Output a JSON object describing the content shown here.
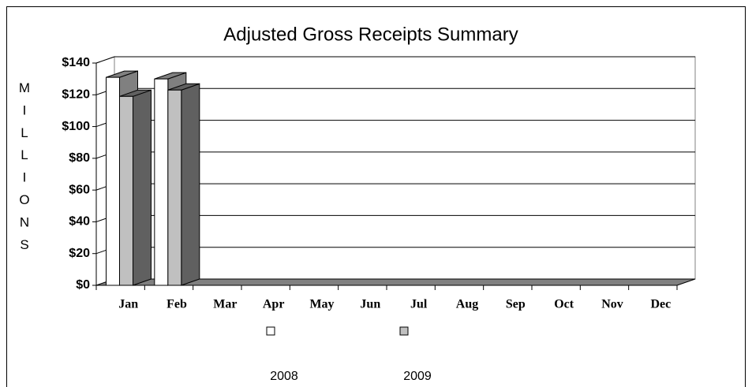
{
  "chart_data": {
    "type": "bar3d",
    "title": "Adjusted Gross Receipts Summary",
    "y_label": "MILLIONS",
    "categories": [
      "Jan",
      "Feb",
      "Mar",
      "Apr",
      "May",
      "Jun",
      "Jul",
      "Aug",
      "Sep",
      "Oct",
      "Nov",
      "Dec"
    ],
    "series": [
      {
        "name": "2008",
        "color": "#ffffff",
        "values": [
          131,
          130,
          null,
          null,
          null,
          null,
          null,
          null,
          null,
          null,
          null,
          null
        ]
      },
      {
        "name": "2009",
        "color": "#c0c0c0",
        "values": [
          119,
          123,
          null,
          null,
          null,
          null,
          null,
          null,
          null,
          null,
          null,
          null
        ]
      }
    ],
    "ylim": [
      0,
      140
    ],
    "yticks": [
      {
        "value": 0,
        "label": "$0"
      },
      {
        "value": 20,
        "label": "$20"
      },
      {
        "value": 40,
        "label": "$40"
      },
      {
        "value": 60,
        "label": "$60"
      },
      {
        "value": 80,
        "label": "$80"
      },
      {
        "value": 100,
        "label": "$100"
      },
      {
        "value": 120,
        "label": "$120"
      },
      {
        "value": 140,
        "label": "$140"
      }
    ],
    "grid": true,
    "legend": "bottom"
  }
}
